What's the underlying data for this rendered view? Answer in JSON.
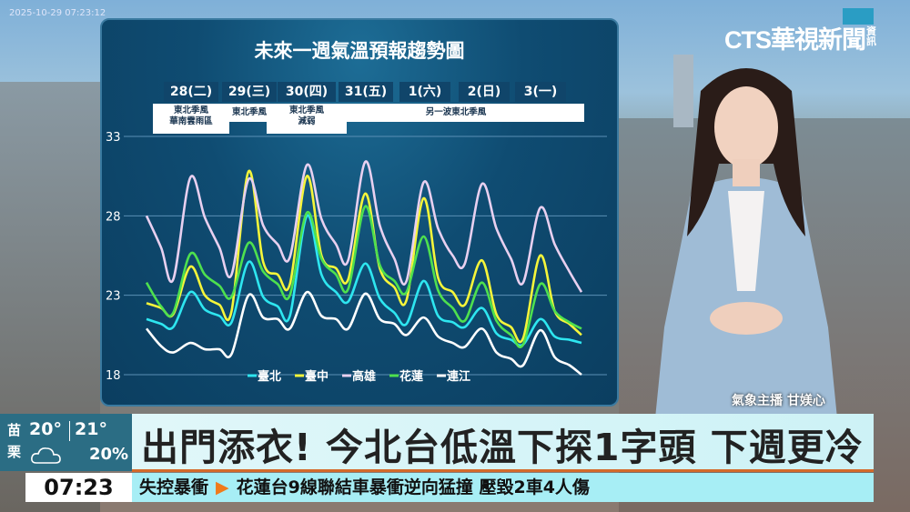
{
  "broadcast": {
    "timestamp": "2025-10-29 07:23:12",
    "logo": "CTS華視新聞",
    "logo_sub": "資訊",
    "anchor": "氣象主播 甘媄心"
  },
  "weather_box": {
    "city": "苗栗",
    "low": "20°",
    "high": "21°",
    "rain": "20%",
    "icon": "cloud-icon"
  },
  "headline": "出門添衣! 今北台低溫下探1字頭 下週更冷",
  "ticker": {
    "time": "07:23",
    "tag": "失控暴衝",
    "text": "花蓮台9線聯結車暴衝逆向猛撞 壓毀2車4人傷"
  },
  "chart_data": {
    "type": "line",
    "title": "未來一週氣溫預報趨勢圖",
    "days": [
      "28(二)",
      "29(三)",
      "30(四)",
      "31(五)",
      "1(六)",
      "2(日)",
      "3(一)"
    ],
    "notes": [
      {
        "text": "東北季風\n華南雲雨區",
        "days": [
          "28(二)"
        ]
      },
      {
        "text": "東北季風",
        "days": [
          "29(三)"
        ]
      },
      {
        "text": "東北季風\n減弱",
        "days": [
          "30(四)"
        ]
      },
      {
        "text": "另一波東北季風",
        "days": [
          "31(五)",
          "1(六)",
          "2(日)",
          "3(一)"
        ]
      }
    ],
    "yticks": [
      18,
      23,
      28,
      33
    ],
    "ylim": [
      18,
      33
    ],
    "grid": true,
    "legend": "bottom",
    "x": [
      "27 18",
      "28 00",
      "28 05",
      "28 12",
      "28 18",
      "29 00",
      "29 05",
      "29 12",
      "29 18",
      "30 00",
      "30 05",
      "30 12",
      "30 18",
      "31 00",
      "31 05",
      "31 12",
      "31 18",
      "1 00",
      "1 05",
      "1 12",
      "1 18",
      "2 00",
      "2 05",
      "2 12",
      "2 18",
      "3 00",
      "3 05",
      "3 12",
      "3 18",
      "4 00",
      "4 05"
    ],
    "series": [
      {
        "name": "臺北",
        "color": "#2ee6f0",
        "values": [
          21.5,
          21.2,
          21.0,
          23.2,
          22.1,
          21.7,
          21.3,
          25.1,
          22.9,
          22.3,
          21.7,
          28.0,
          24.3,
          23.2,
          22.6,
          25.0,
          22.8,
          21.9,
          21.2,
          23.9,
          21.7,
          21.3,
          21.0,
          22.2,
          20.6,
          20.2,
          19.9,
          21.5,
          20.4,
          20.2,
          20.0
        ]
      },
      {
        "name": "臺中",
        "color": "#f5f53a",
        "values": [
          22.5,
          22.2,
          21.8,
          24.8,
          23.0,
          22.4,
          22.0,
          30.8,
          25.1,
          24.3,
          23.7,
          30.5,
          25.5,
          24.7,
          24.0,
          29.4,
          24.7,
          23.5,
          22.7,
          29.1,
          24.1,
          23.2,
          22.4,
          25.2,
          21.8,
          21.0,
          20.3,
          25.5,
          22.0,
          21.2,
          20.5
        ]
      },
      {
        "name": "高雄",
        "color": "#e8d0f0",
        "values": [
          28.0,
          26.0,
          24.0,
          30.4,
          27.9,
          26.0,
          24.3,
          30.3,
          27.4,
          26.2,
          25.4,
          31.2,
          27.8,
          26.2,
          25.2,
          31.4,
          27.4,
          25.3,
          23.9,
          30.1,
          27.2,
          25.5,
          25.0,
          30.0,
          27.2,
          25.3,
          23.8,
          28.5,
          26.2,
          24.5,
          23.2
        ]
      },
      {
        "name": "花蓮",
        "color": "#4ee04e",
        "values": [
          23.8,
          22.3,
          21.9,
          25.6,
          24.3,
          23.6,
          22.9,
          26.3,
          24.5,
          23.7,
          23.0,
          28.2,
          25.3,
          24.3,
          23.4,
          28.6,
          24.9,
          23.9,
          23.2,
          26.7,
          23.3,
          22.2,
          21.4,
          23.8,
          21.4,
          20.5,
          19.9,
          23.7,
          22.0,
          21.3,
          20.9
        ]
      },
      {
        "name": "連江",
        "color": "#ffffff",
        "values": [
          20.9,
          19.8,
          19.4,
          20.0,
          19.6,
          19.6,
          19.3,
          23.0,
          21.6,
          21.5,
          20.9,
          23.2,
          21.7,
          21.5,
          20.9,
          23.1,
          21.5,
          21.2,
          20.5,
          21.6,
          20.4,
          20.0,
          19.75,
          20.9,
          19.4,
          19.0,
          18.6,
          20.8,
          19.1,
          18.6,
          18.0
        ]
      }
    ]
  }
}
